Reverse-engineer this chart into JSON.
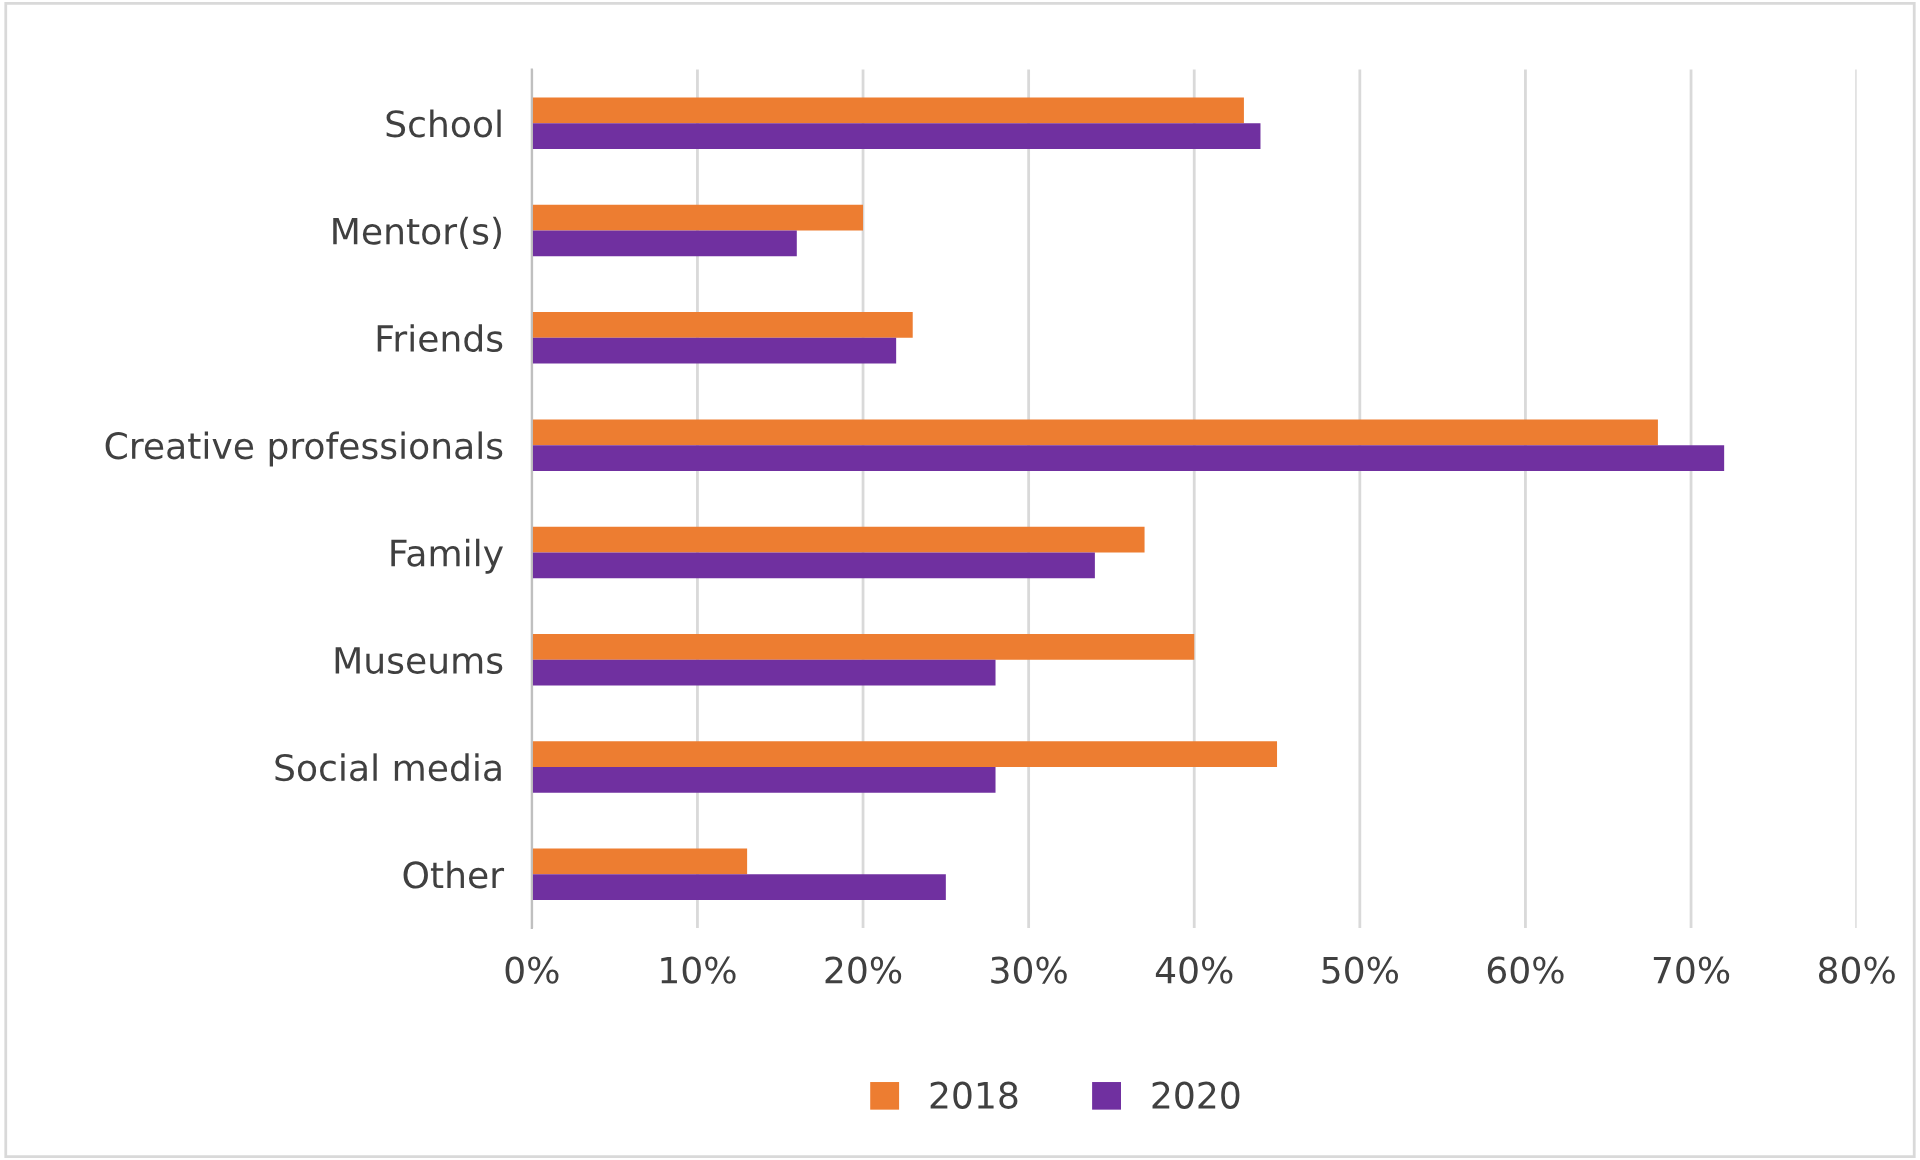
{
  "chart_data": {
    "type": "bar",
    "orientation": "horizontal",
    "categories": [
      "School",
      "Mentor(s)",
      "Friends",
      "Creative professionals",
      "Family",
      "Museums",
      "Social media",
      "Other"
    ],
    "series": [
      {
        "name": "2018",
        "color": "#ed7d31",
        "values": [
          43,
          20,
          23,
          68,
          37,
          40,
          45,
          13
        ]
      },
      {
        "name": "2020",
        "color": "#7030a0",
        "values": [
          44,
          16,
          22,
          72,
          34,
          28,
          28,
          25
        ]
      }
    ],
    "xlim": [
      0,
      80
    ],
    "xticks": [
      {
        "value": 0,
        "label": "0%"
      },
      {
        "value": 10,
        "label": "10%"
      },
      {
        "value": 20,
        "label": "20%"
      },
      {
        "value": 30,
        "label": "30%"
      },
      {
        "value": 40,
        "label": "40%"
      },
      {
        "value": 50,
        "label": "50%"
      },
      {
        "value": 60,
        "label": "60%"
      },
      {
        "value": 70,
        "label": "70%"
      },
      {
        "value": 80,
        "label": "80%"
      }
    ],
    "grid": "x",
    "legend": "bottom"
  }
}
